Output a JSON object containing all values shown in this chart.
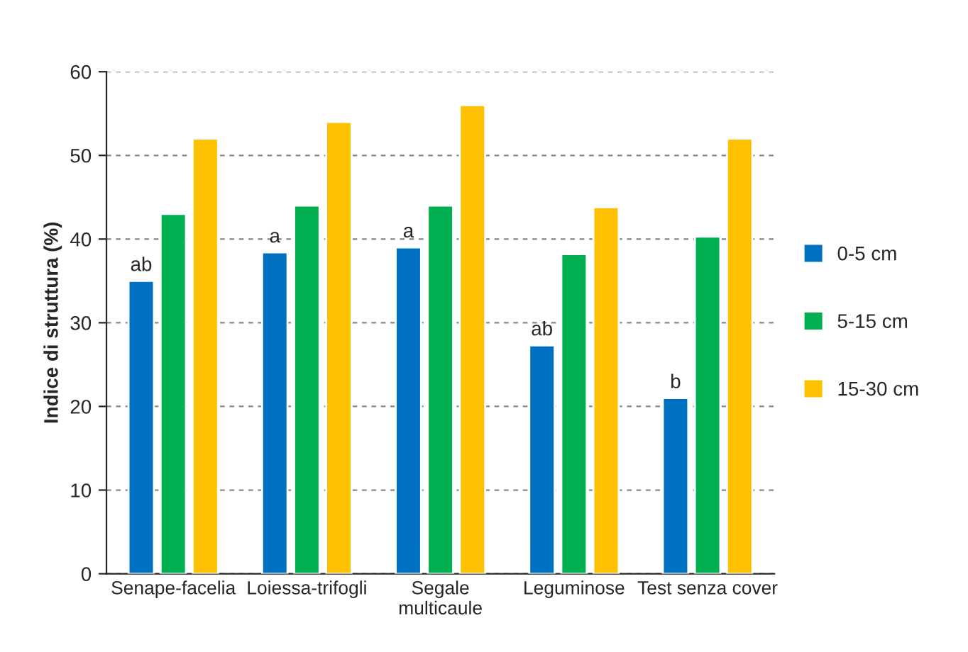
{
  "chart_data": {
    "type": "bar",
    "ylabel": "Indice di struttura (%)",
    "categories": [
      "Senape-facelia",
      "Loiessa-trifogli",
      "Segale\nmulticaule",
      "Leguminose",
      "Test senza cover"
    ],
    "series": [
      {
        "name": "0-5 cm",
        "color": "#0070c0",
        "values": [
          35,
          38.4,
          39,
          27.3,
          21
        ],
        "value_labels": [
          "ab",
          "a",
          "a",
          "ab",
          "b"
        ]
      },
      {
        "name": "5-15 cm",
        "color": "#00b050",
        "values": [
          43,
          44,
          44,
          38.2,
          40.3
        ]
      },
      {
        "name": "15-30 cm",
        "color": "#ffc000",
        "values": [
          52,
          54,
          56,
          43.8,
          52
        ]
      }
    ],
    "ylim": [
      0,
      60
    ],
    "yticks": [
      0,
      10,
      20,
      30,
      40,
      50,
      60
    ],
    "grid": "y",
    "legend": "right"
  }
}
